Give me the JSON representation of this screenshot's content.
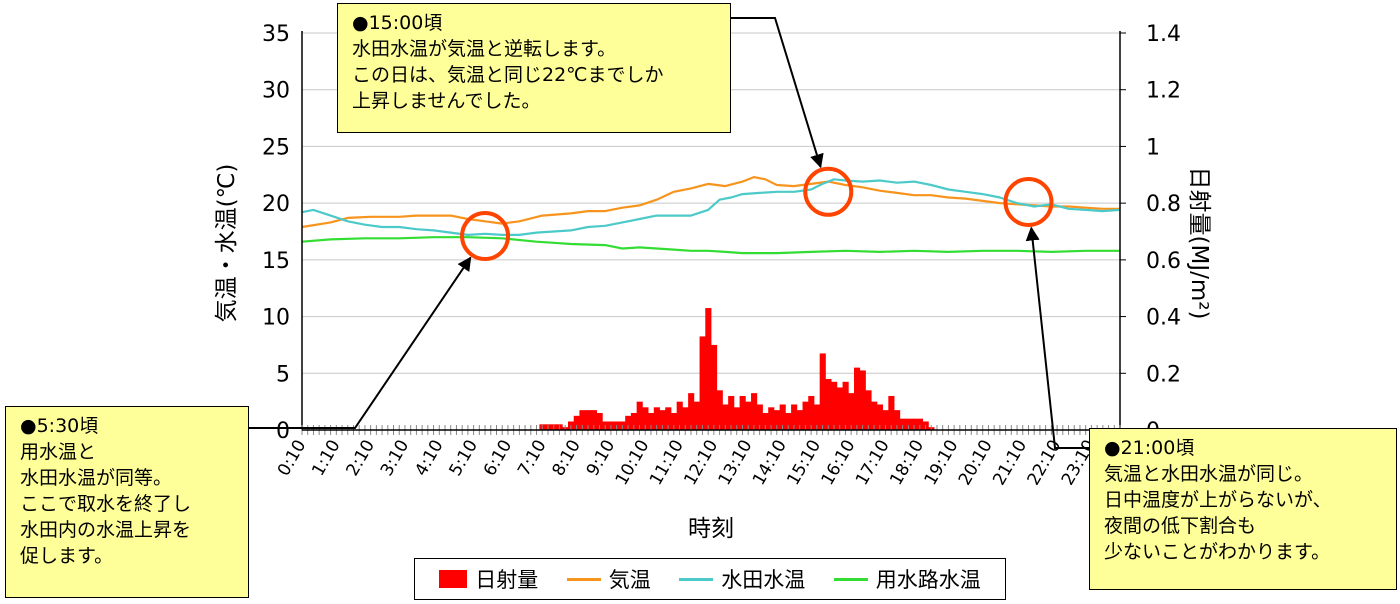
{
  "chart_data": {
    "type": "bar+line",
    "xlabel": "時刻",
    "ylabel_left": "気温・水温(℃)",
    "ylabel_right": "日射量(MJ/m²)",
    "ylim_left": [
      0,
      35
    ],
    "yticks_left": [
      "0",
      "5",
      "10",
      "15",
      "20",
      "25",
      "30",
      "35"
    ],
    "ylim_right": [
      0,
      1.4
    ],
    "yticks_right": [
      "0",
      "0.2",
      "0.4",
      "0.6",
      "0.8",
      "1",
      "1.2",
      "1.4"
    ],
    "x_tick_labels": [
      "0:10",
      "1:10",
      "2:10",
      "3:10",
      "4:10",
      "5:10",
      "6:10",
      "7:10",
      "8:10",
      "9:10",
      "10:10",
      "11:10",
      "12:10",
      "13:10",
      "14:10",
      "15:10",
      "16:10",
      "17:10",
      "18:10",
      "19:10",
      "20:10",
      "21:10",
      "22:10",
      "23:10"
    ],
    "x_interval_minutes": 10,
    "x_start": "0:10",
    "series": [
      {
        "name": "日射量",
        "type": "bar",
        "axis": "right",
        "color": "#ff0000",
        "points": [
          [
            "7:10",
            0.02
          ],
          [
            "7:20",
            0.02
          ],
          [
            "7:30",
            0.02
          ],
          [
            "7:40",
            0.02
          ],
          [
            "7:50",
            0.01
          ],
          [
            "8:00",
            0.03
          ],
          [
            "8:10",
            0.05
          ],
          [
            "8:20",
            0.07
          ],
          [
            "8:30",
            0.07
          ],
          [
            "8:40",
            0.07
          ],
          [
            "8:50",
            0.06
          ],
          [
            "9:00",
            0.03
          ],
          [
            "9:10",
            0.03
          ],
          [
            "9:20",
            0.03
          ],
          [
            "9:30",
            0.03
          ],
          [
            "9:40",
            0.05
          ],
          [
            "9:50",
            0.06
          ],
          [
            "10:00",
            0.1
          ],
          [
            "10:10",
            0.08
          ],
          [
            "10:20",
            0.06
          ],
          [
            "10:30",
            0.08
          ],
          [
            "10:40",
            0.07
          ],
          [
            "10:50",
            0.08
          ],
          [
            "11:00",
            0.06
          ],
          [
            "11:10",
            0.1
          ],
          [
            "11:20",
            0.08
          ],
          [
            "11:30",
            0.13
          ],
          [
            "11:40",
            0.1
          ],
          [
            "11:50",
            0.33
          ],
          [
            "12:00",
            0.43
          ],
          [
            "12:10",
            0.3
          ],
          [
            "12:20",
            0.14
          ],
          [
            "12:30",
            0.09
          ],
          [
            "12:40",
            0.12
          ],
          [
            "12:50",
            0.08
          ],
          [
            "13:00",
            0.12
          ],
          [
            "13:10",
            0.1
          ],
          [
            "13:20",
            0.13
          ],
          [
            "13:30",
            0.09
          ],
          [
            "13:40",
            0.06
          ],
          [
            "13:50",
            0.08
          ],
          [
            "14:00",
            0.07
          ],
          [
            "14:10",
            0.09
          ],
          [
            "14:20",
            0.06
          ],
          [
            "14:30",
            0.09
          ],
          [
            "14:40",
            0.07
          ],
          [
            "14:50",
            0.1
          ],
          [
            "15:00",
            0.12
          ],
          [
            "15:10",
            0.09
          ],
          [
            "15:20",
            0.27
          ],
          [
            "15:30",
            0.18
          ],
          [
            "15:40",
            0.17
          ],
          [
            "15:50",
            0.15
          ],
          [
            "16:00",
            0.17
          ],
          [
            "16:10",
            0.13
          ],
          [
            "16:20",
            0.22
          ],
          [
            "16:30",
            0.21
          ],
          [
            "16:40",
            0.14
          ],
          [
            "16:50",
            0.1
          ],
          [
            "17:00",
            0.09
          ],
          [
            "17:10",
            0.07
          ],
          [
            "17:20",
            0.12
          ],
          [
            "17:30",
            0.07
          ],
          [
            "17:40",
            0.04
          ],
          [
            "17:50",
            0.04
          ],
          [
            "18:00",
            0.04
          ],
          [
            "18:10",
            0.04
          ],
          [
            "18:20",
            0.03
          ],
          [
            "18:30",
            0.01
          ]
        ]
      },
      {
        "name": "気温",
        "type": "line",
        "axis": "left",
        "color": "#f7941d",
        "points": [
          [
            "0:10",
            17.9
          ],
          [
            "1:00",
            18.3
          ],
          [
            "1:30",
            18.7
          ],
          [
            "2:10",
            18.8
          ],
          [
            "3:00",
            18.8
          ],
          [
            "3:30",
            18.9
          ],
          [
            "4:00",
            18.9
          ],
          [
            "4:30",
            18.9
          ],
          [
            "5:00",
            18.6
          ],
          [
            "5:30",
            18.4
          ],
          [
            "6:00",
            18.2
          ],
          [
            "6:30",
            18.4
          ],
          [
            "7:10",
            18.9
          ],
          [
            "8:00",
            19.1
          ],
          [
            "8:30",
            19.3
          ],
          [
            "9:00",
            19.3
          ],
          [
            "9:30",
            19.6
          ],
          [
            "10:00",
            19.8
          ],
          [
            "10:30",
            20.3
          ],
          [
            "11:00",
            21.0
          ],
          [
            "11:30",
            21.3
          ],
          [
            "12:00",
            21.7
          ],
          [
            "12:30",
            21.5
          ],
          [
            "13:00",
            21.9
          ],
          [
            "13:20",
            22.3
          ],
          [
            "13:40",
            22.1
          ],
          [
            "14:00",
            21.6
          ],
          [
            "14:30",
            21.5
          ],
          [
            "15:00",
            21.7
          ],
          [
            "15:30",
            21.9
          ],
          [
            "16:00",
            21.6
          ],
          [
            "16:30",
            21.4
          ],
          [
            "17:00",
            21.1
          ],
          [
            "17:30",
            20.9
          ],
          [
            "18:00",
            20.7
          ],
          [
            "18:30",
            20.7
          ],
          [
            "19:00",
            20.5
          ],
          [
            "19:30",
            20.4
          ],
          [
            "20:00",
            20.2
          ],
          [
            "20:30",
            20.0
          ],
          [
            "21:00",
            19.9
          ],
          [
            "21:30",
            19.8
          ],
          [
            "22:00",
            19.7
          ],
          [
            "22:30",
            19.7
          ],
          [
            "23:00",
            19.6
          ],
          [
            "23:30",
            19.5
          ],
          [
            "23:59",
            19.5
          ]
        ]
      },
      {
        "name": "水田水温",
        "type": "line",
        "axis": "left",
        "color": "#4cc9c9",
        "points": [
          [
            "0:10",
            19.2
          ],
          [
            "0:30",
            19.4
          ],
          [
            "1:00",
            18.9
          ],
          [
            "1:30",
            18.4
          ],
          [
            "2:00",
            18.1
          ],
          [
            "2:30",
            17.9
          ],
          [
            "3:00",
            17.9
          ],
          [
            "3:30",
            17.7
          ],
          [
            "4:00",
            17.6
          ],
          [
            "4:30",
            17.4
          ],
          [
            "5:00",
            17.2
          ],
          [
            "5:30",
            17.3
          ],
          [
            "6:00",
            17.2
          ],
          [
            "6:30",
            17.2
          ],
          [
            "7:00",
            17.4
          ],
          [
            "7:30",
            17.5
          ],
          [
            "8:00",
            17.6
          ],
          [
            "8:30",
            17.9
          ],
          [
            "9:00",
            18.0
          ],
          [
            "9:30",
            18.3
          ],
          [
            "10:00",
            18.6
          ],
          [
            "10:30",
            18.9
          ],
          [
            "11:00",
            18.9
          ],
          [
            "11:30",
            18.9
          ],
          [
            "12:00",
            19.4
          ],
          [
            "12:20",
            20.3
          ],
          [
            "12:40",
            20.5
          ],
          [
            "13:00",
            20.8
          ],
          [
            "13:30",
            20.9
          ],
          [
            "14:00",
            21.0
          ],
          [
            "14:30",
            21.0
          ],
          [
            "15:00",
            21.2
          ],
          [
            "15:20",
            21.7
          ],
          [
            "15:40",
            22.1
          ],
          [
            "16:00",
            22.0
          ],
          [
            "16:30",
            21.9
          ],
          [
            "17:00",
            22.0
          ],
          [
            "17:30",
            21.8
          ],
          [
            "18:00",
            21.9
          ],
          [
            "18:30",
            21.6
          ],
          [
            "19:00",
            21.2
          ],
          [
            "19:30",
            21.0
          ],
          [
            "20:00",
            20.8
          ],
          [
            "20:30",
            20.5
          ],
          [
            "21:00",
            20.0
          ],
          [
            "21:30",
            19.7
          ],
          [
            "22:00",
            19.9
          ],
          [
            "22:30",
            19.5
          ],
          [
            "23:00",
            19.4
          ],
          [
            "23:30",
            19.3
          ],
          [
            "23:59",
            19.4
          ]
        ]
      },
      {
        "name": "用水路水温",
        "type": "line",
        "axis": "left",
        "color": "#33dd33",
        "points": [
          [
            "0:10",
            16.6
          ],
          [
            "1:00",
            16.8
          ],
          [
            "2:00",
            16.9
          ],
          [
            "3:00",
            16.9
          ],
          [
            "4:00",
            17.0
          ],
          [
            "5:00",
            17.0
          ],
          [
            "6:00",
            16.9
          ],
          [
            "7:00",
            16.6
          ],
          [
            "7:30",
            16.5
          ],
          [
            "8:00",
            16.4
          ],
          [
            "9:00",
            16.3
          ],
          [
            "9:30",
            16.0
          ],
          [
            "10:00",
            16.1
          ],
          [
            "10:30",
            16.0
          ],
          [
            "11:00",
            15.9
          ],
          [
            "11:30",
            15.8
          ],
          [
            "12:00",
            15.8
          ],
          [
            "12:30",
            15.7
          ],
          [
            "13:00",
            15.6
          ],
          [
            "14:00",
            15.6
          ],
          [
            "15:00",
            15.7
          ],
          [
            "16:00",
            15.8
          ],
          [
            "17:00",
            15.7
          ],
          [
            "18:00",
            15.8
          ],
          [
            "19:00",
            15.7
          ],
          [
            "20:00",
            15.8
          ],
          [
            "21:00",
            15.8
          ],
          [
            "22:00",
            15.7
          ],
          [
            "23:00",
            15.8
          ],
          [
            "23:59",
            15.8
          ]
        ]
      }
    ],
    "markers": [
      {
        "time": "5:30",
        "value": 17.1,
        "color": "#ff4400"
      },
      {
        "time": "15:30",
        "value": 21.0,
        "color": "#ff4400"
      },
      {
        "time": "21:20",
        "value": 20.1,
        "color": "#ff4400"
      }
    ],
    "legend_position": "bottom"
  },
  "callouts": [
    {
      "id": "0530",
      "lines": [
        "●5:30頃",
        "用水温と",
        "水田水温が同等。",
        "ここで取水を終了し",
        "水田内の水温上昇を",
        "促します。"
      ]
    },
    {
      "id": "1500",
      "lines": [
        "●15:00頃",
        "水田水温が気温と逆転します。",
        "この日は、気温と同じ22℃までしか",
        "上昇しませんでした。"
      ]
    },
    {
      "id": "2100",
      "lines": [
        "●21:00頃",
        "気温と水田水温が同じ。",
        "日中温度が上がらないが、",
        "夜間の低下割合も",
        "少ないことがわかります。"
      ]
    }
  ]
}
